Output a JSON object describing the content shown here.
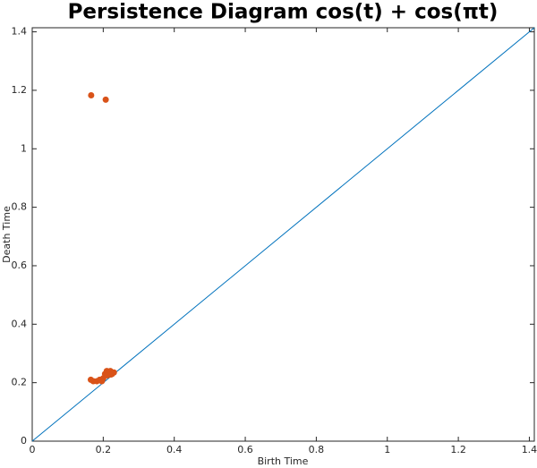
{
  "chart_data": {
    "type": "scatter",
    "title": "Persistence Diagram cos(t) + cos(πt)",
    "x_label": "Birth Time",
    "y_label": "Death Time",
    "series": [
      {
        "color": "#d95319",
        "x": [
          0.166,
          0.207,
          0.165,
          0.172,
          0.182,
          0.19,
          0.196,
          0.2,
          0.205,
          0.21,
          0.215,
          0.22,
          0.225,
          0.23,
          0.212,
          0.222
        ],
        "values": [
          1.183,
          1.168,
          0.21,
          0.205,
          0.205,
          0.21,
          0.205,
          0.215,
          0.23,
          0.24,
          0.235,
          0.24,
          0.23,
          0.235,
          0.225,
          0.228
        ]
      }
    ],
    "line": {
      "color": "#0072bd",
      "x": [
        0,
        1.414
      ],
      "values": [
        0,
        1.414
      ]
    },
    "xlim": [
      0,
      1.414
    ],
    "ylim": [
      0,
      1.414
    ],
    "xticks": [
      0,
      0.2,
      0.4,
      0.6,
      0.8,
      1,
      1.2,
      1.4
    ],
    "yticks": [
      0,
      0.2,
      0.4,
      0.6,
      0.8,
      1,
      1.2,
      1.4
    ]
  }
}
